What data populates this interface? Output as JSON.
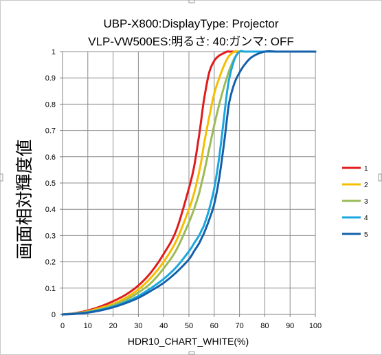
{
  "chart_data": {
    "type": "line",
    "title": "UBP-X800:DisplayType: Projector",
    "subtitle": "VLP-VW500ES:明るさ: 40:ガンマ: OFF",
    "xlabel": "HDR10_CHART_WHITE(%)",
    "ylabel": "画面相対輝度値",
    "xlim": [
      0,
      100
    ],
    "ylim": [
      0,
      1
    ],
    "x_ticks": [
      "0",
      "10",
      "20",
      "30",
      "40",
      "50",
      "60",
      "70",
      "80",
      "90",
      "100"
    ],
    "y_ticks": [
      "0",
      "0.1",
      "0.2",
      "0.3",
      "0.4",
      "0.5",
      "0.6",
      "0.7",
      "0.8",
      "0.9",
      "1"
    ],
    "grid": true,
    "legend_position": "right",
    "x": [
      0,
      5,
      10,
      15,
      20,
      25,
      30,
      35,
      40,
      45,
      50,
      52,
      54,
      55,
      56,
      58,
      60,
      62,
      64,
      65,
      66,
      68,
      70,
      72,
      75,
      80,
      85,
      90,
      95,
      100
    ],
    "series": [
      {
        "name": "1",
        "color": "#e01b1b",
        "values": [
          0,
          0.005,
          0.015,
          0.03,
          0.05,
          0.075,
          0.11,
          0.16,
          0.23,
          0.32,
          0.48,
          0.56,
          0.68,
          0.75,
          0.82,
          0.92,
          0.965,
          0.985,
          0.995,
          1,
          1,
          1,
          1,
          1,
          1,
          1,
          1,
          1,
          1,
          1
        ]
      },
      {
        "name": "2",
        "color": "#f5be00",
        "values": [
          0,
          0.004,
          0.012,
          0.025,
          0.04,
          0.063,
          0.095,
          0.14,
          0.2,
          0.28,
          0.4,
          0.46,
          0.54,
          0.59,
          0.65,
          0.75,
          0.84,
          0.9,
          0.95,
          0.97,
          0.985,
          1,
          1,
          1,
          1,
          1,
          1,
          1,
          1,
          1
        ]
      },
      {
        "name": "3",
        "color": "#9bbb59",
        "values": [
          0,
          0.003,
          0.01,
          0.02,
          0.035,
          0.055,
          0.083,
          0.12,
          0.175,
          0.245,
          0.35,
          0.4,
          0.46,
          0.5,
          0.54,
          0.63,
          0.72,
          0.8,
          0.87,
          0.9,
          0.93,
          0.975,
          1,
          1,
          1,
          1,
          1,
          1,
          1,
          1
        ]
      },
      {
        "name": "4",
        "color": "#1aa7e0",
        "values": [
          0,
          0.003,
          0.008,
          0.017,
          0.03,
          0.047,
          0.07,
          0.1,
          0.135,
          0.18,
          0.24,
          0.27,
          0.3,
          0.32,
          0.34,
          0.4,
          0.48,
          0.6,
          0.76,
          0.84,
          0.9,
          0.97,
          1,
          1,
          1,
          1,
          1,
          1,
          1,
          1
        ]
      },
      {
        "name": "5",
        "color": "#1560aa",
        "values": [
          0,
          0.002,
          0.007,
          0.015,
          0.027,
          0.043,
          0.063,
          0.09,
          0.12,
          0.16,
          0.21,
          0.24,
          0.27,
          0.29,
          0.31,
          0.36,
          0.42,
          0.52,
          0.66,
          0.74,
          0.81,
          0.88,
          0.92,
          0.95,
          0.98,
          1,
          1,
          1,
          1,
          1
        ]
      }
    ]
  }
}
